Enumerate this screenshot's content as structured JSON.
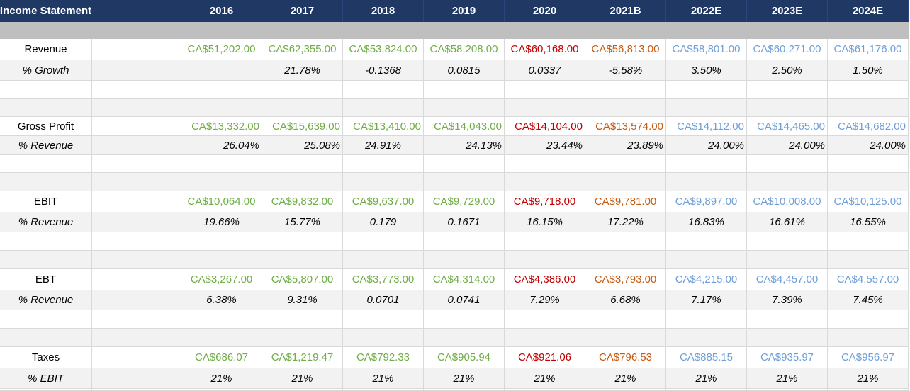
{
  "header": {
    "title": "Income Statement",
    "years": [
      "2016",
      "2017",
      "2018",
      "2019",
      "2020",
      "2021B",
      "2022E",
      "2023E",
      "2024E"
    ]
  },
  "colors": {
    "header_bg": "#1f3864",
    "actual": "#70ad47",
    "current": "#c00000",
    "budget": "#c55a11",
    "estimate": "#6f9fd8"
  },
  "rows": {
    "revenue": {
      "label": "Revenue",
      "values": [
        "CA$51,202.00",
        "CA$62,355.00",
        "CA$53,824.00",
        "CA$58,208.00",
        "CA$60,168.00",
        "CA$56,813.00",
        "CA$58,801.00",
        "CA$60,271.00",
        "CA$61,176.00"
      ]
    },
    "growth": {
      "label": "% Growth",
      "values": [
        "",
        "21.78%",
        "-0.1368",
        "0.0815",
        "0.0337",
        "-5.58%",
        "3.50%",
        "2.50%",
        "1.50%"
      ]
    },
    "gross_profit": {
      "label": "Gross Profit",
      "values": [
        "CA$13,332.00",
        "CA$15,639.00",
        "CA$13,410.00",
        "CA$14,043.00",
        "CA$14,104.00",
        "CA$13,574.00",
        "CA$14,112.00",
        "CA$14,465.00",
        "CA$14,682.00"
      ]
    },
    "gp_pct": {
      "label": "% Revenue",
      "values": [
        "26.04%",
        "25.08%",
        "24.91%",
        "24.13%",
        "23.44%",
        "23.89%",
        "24.00%",
        "24.00%",
        "24.00%"
      ]
    },
    "ebit": {
      "label": "EBIT",
      "values": [
        "CA$10,064.00",
        "CA$9,832.00",
        "CA$9,637.00",
        "CA$9,729.00",
        "CA$9,718.00",
        "CA$9,781.00",
        "CA$9,897.00",
        "CA$10,008.00",
        "CA$10,125.00"
      ]
    },
    "ebit_pct": {
      "label": "% Revenue",
      "values": [
        "19.66%",
        "15.77%",
        "0.179",
        "0.1671",
        "16.15%",
        "17.22%",
        "16.83%",
        "16.61%",
        "16.55%"
      ]
    },
    "ebt": {
      "label": "EBT",
      "values": [
        "CA$3,267.00",
        "CA$5,807.00",
        "CA$3,773.00",
        "CA$4,314.00",
        "CA$4,386.00",
        "CA$3,793.00",
        "CA$4,215.00",
        "CA$4,457.00",
        "CA$4,557.00"
      ]
    },
    "ebt_pct": {
      "label": "% Revenue",
      "values": [
        "6.38%",
        "9.31%",
        "0.0701",
        "0.0741",
        "7.29%",
        "6.68%",
        "7.17%",
        "7.39%",
        "7.45%"
      ]
    },
    "taxes": {
      "label": "Taxes",
      "values": [
        "CA$686.07",
        "CA$1,219.47",
        "CA$792.33",
        "CA$905.94",
        "CA$921.06",
        "CA$796.53",
        "CA$885.15",
        "CA$935.97",
        "CA$956.97"
      ]
    },
    "tax_pct": {
      "label": "% EBIT",
      "values": [
        "21%",
        "21%",
        "21%",
        "21%",
        "21%",
        "21%",
        "21%",
        "21%",
        "21%"
      ]
    }
  }
}
